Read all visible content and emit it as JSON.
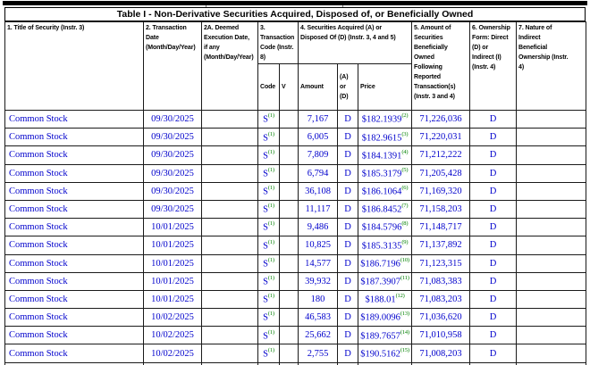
{
  "page": {
    "title": "Table I - Non-Derivative Securities Acquired, Disposed of, or Beneficially Owned"
  },
  "colors": {
    "data_text": "#0000cc",
    "footnote_ref": "#008000",
    "border": "#1a1a1a"
  },
  "table": {
    "headers": {
      "col1": "1. Title of Security (Instr. 3)",
      "col2": "2. Transaction\nDate\n(Month/Day/Year)",
      "col2a": "2A. Deemed\nExecution Date,\nif any\n(Month/Day/Year)",
      "col3": "3.\nTransaction\nCode (Instr.\n8)",
      "col4": "4. Securities Acquired (A) or\nDisposed Of (D) (Instr. 3, 4 and 5)",
      "col5": "5. Amount of\nSecurities\nBeneficially\nOwned\nFollowing\nReported\nTransaction(s)\n(Instr. 3 and 4)",
      "col6": "6. Ownership\nForm: Direct\n(D) or\nIndirect (I)\n(Instr. 4)",
      "col7": "7. Nature of\nIndirect\nBeneficial\nOwnership (Instr.\n4)",
      "sub_code": "Code",
      "sub_v": "V",
      "sub_amount": "Amount",
      "sub_ad": "(A) or\n(D)",
      "sub_price": "Price"
    },
    "rows": [
      {
        "security": "Common Stock",
        "date": "09/30/2025",
        "deemed": "",
        "code": "S",
        "code_fn": "(1)",
        "v": "",
        "amount": "7,167",
        "ad": "D",
        "price": "$182.1939",
        "price_fn": "(2)",
        "owned": "71,226,036",
        "form": "D",
        "nature": ""
      },
      {
        "security": "Common Stock",
        "date": "09/30/2025",
        "deemed": "",
        "code": "S",
        "code_fn": "(1)",
        "v": "",
        "amount": "6,005",
        "ad": "D",
        "price": "$182.9615",
        "price_fn": "(3)",
        "owned": "71,220,031",
        "form": "D",
        "nature": ""
      },
      {
        "security": "Common Stock",
        "date": "09/30/2025",
        "deemed": "",
        "code": "S",
        "code_fn": "(1)",
        "v": "",
        "amount": "7,809",
        "ad": "D",
        "price": "$184.1391",
        "price_fn": "(4)",
        "owned": "71,212,222",
        "form": "D",
        "nature": ""
      },
      {
        "security": "Common Stock",
        "date": "09/30/2025",
        "deemed": "",
        "code": "S",
        "code_fn": "(1)",
        "v": "",
        "amount": "6,794",
        "ad": "D",
        "price": "$185.3179",
        "price_fn": "(5)",
        "owned": "71,205,428",
        "form": "D",
        "nature": ""
      },
      {
        "security": "Common Stock",
        "date": "09/30/2025",
        "deemed": "",
        "code": "S",
        "code_fn": "(1)",
        "v": "",
        "amount": "36,108",
        "ad": "D",
        "price": "$186.1064",
        "price_fn": "(6)",
        "owned": "71,169,320",
        "form": "D",
        "nature": ""
      },
      {
        "security": "Common Stock",
        "date": "09/30/2025",
        "deemed": "",
        "code": "S",
        "code_fn": "(1)",
        "v": "",
        "amount": "11,117",
        "ad": "D",
        "price": "$186.8452",
        "price_fn": "(7)",
        "owned": "71,158,203",
        "form": "D",
        "nature": ""
      },
      {
        "security": "Common Stock",
        "date": "10/01/2025",
        "deemed": "",
        "code": "S",
        "code_fn": "(1)",
        "v": "",
        "amount": "9,486",
        "ad": "D",
        "price": "$184.5796",
        "price_fn": "(8)",
        "owned": "71,148,717",
        "form": "D",
        "nature": ""
      },
      {
        "security": "Common Stock",
        "date": "10/01/2025",
        "deemed": "",
        "code": "S",
        "code_fn": "(1)",
        "v": "",
        "amount": "10,825",
        "ad": "D",
        "price": "$185.3135",
        "price_fn": "(9)",
        "owned": "71,137,892",
        "form": "D",
        "nature": ""
      },
      {
        "security": "Common Stock",
        "date": "10/01/2025",
        "deemed": "",
        "code": "S",
        "code_fn": "(1)",
        "v": "",
        "amount": "14,577",
        "ad": "D",
        "price": "$186.7196",
        "price_fn": "(10)",
        "owned": "71,123,315",
        "form": "D",
        "nature": ""
      },
      {
        "security": "Common Stock",
        "date": "10/01/2025",
        "deemed": "",
        "code": "S",
        "code_fn": "(1)",
        "v": "",
        "amount": "39,932",
        "ad": "D",
        "price": "$187.3907",
        "price_fn": "(11)",
        "owned": "71,083,383",
        "form": "D",
        "nature": ""
      },
      {
        "security": "Common Stock",
        "date": "10/01/2025",
        "deemed": "",
        "code": "S",
        "code_fn": "(1)",
        "v": "",
        "amount": "180",
        "ad": "D",
        "price": "$188.01",
        "price_fn": "(12)",
        "owned": "71,083,203",
        "form": "D",
        "nature": ""
      },
      {
        "security": "Common Stock",
        "date": "10/02/2025",
        "deemed": "",
        "code": "S",
        "code_fn": "(1)",
        "v": "",
        "amount": "46,583",
        "ad": "D",
        "price": "$189.0096",
        "price_fn": "(13)",
        "owned": "71,036,620",
        "form": "D",
        "nature": ""
      },
      {
        "security": "Common Stock",
        "date": "10/02/2025",
        "deemed": "",
        "code": "S",
        "code_fn": "(1)",
        "v": "",
        "amount": "25,662",
        "ad": "D",
        "price": "$189.7657",
        "price_fn": "(14)",
        "owned": "71,010,958",
        "form": "D",
        "nature": ""
      },
      {
        "security": "Common Stock",
        "date": "10/02/2025",
        "deemed": "",
        "code": "S",
        "code_fn": "(1)",
        "v": "",
        "amount": "2,755",
        "ad": "D",
        "price": "$190.5162",
        "price_fn": "(15)",
        "owned": "71,008,203",
        "form": "D",
        "nature": ""
      }
    ]
  }
}
